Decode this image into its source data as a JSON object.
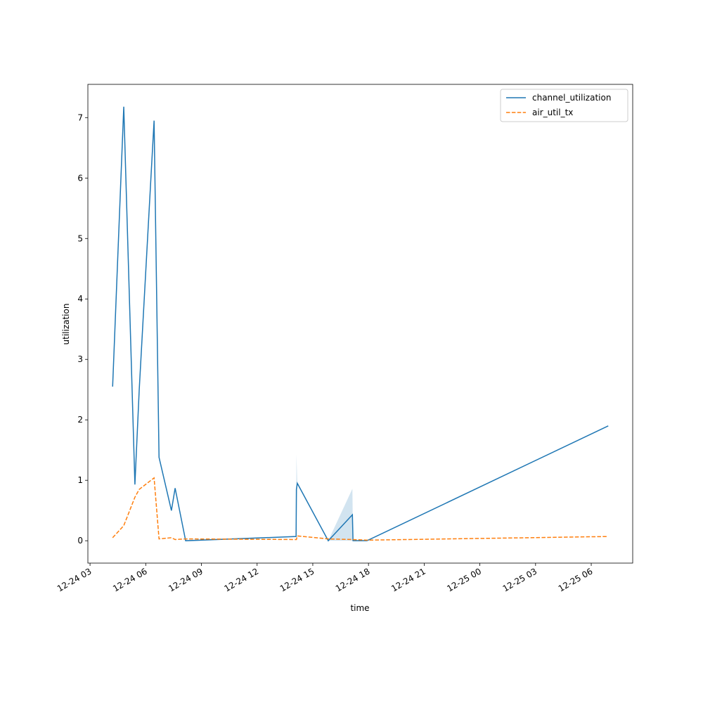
{
  "chart_data": {
    "type": "line",
    "x_label": "time",
    "y_label": "utilization",
    "x": [
      "12-24 04:13",
      "12-24 04:49",
      "12-24 05:25",
      "12-24 05:39",
      "12-24 06:27",
      "12-24 06:43",
      "12-24 07:23",
      "12-24 07:35",
      "12-24 08:09",
      "12-24 14:06",
      "12-24 14:07",
      "12-24 14:10",
      "12-24 15:50",
      "12-24 17:08",
      "12-24 17:10",
      "12-24 17:55",
      "12-25 06:55"
    ],
    "series": [
      {
        "name": "channel_utilization",
        "color": "#1f77b4",
        "dash": false,
        "values": [
          2.55,
          7.18,
          0.93,
          2.5,
          6.95,
          1.38,
          0.5,
          0.87,
          0.0,
          0.07,
          0.85,
          0.95,
          0.0,
          0.43,
          0.0,
          0.0,
          1.9
        ],
        "lower": [
          2.55,
          7.18,
          0.93,
          2.5,
          6.95,
          1.38,
          0.5,
          0.87,
          0.0,
          0.07,
          0.07,
          0.95,
          0.0,
          0.0,
          0.0,
          0.0,
          1.9
        ],
        "upper": [
          2.55,
          7.18,
          0.93,
          2.5,
          6.95,
          1.38,
          0.5,
          0.87,
          0.0,
          0.07,
          1.43,
          0.95,
          0.0,
          0.86,
          0.0,
          0.0,
          1.9
        ]
      },
      {
        "name": "air_util_tx",
        "color": "#ff7f0e",
        "dash": true,
        "values": [
          0.05,
          0.25,
          0.72,
          0.85,
          1.04,
          0.03,
          0.05,
          0.02,
          0.03,
          0.02,
          0.02,
          0.08,
          0.03,
          0.02,
          0.02,
          0.01,
          0.07
        ]
      }
    ],
    "xlim": [
      "12-24 02:53",
      "12-25 08:14"
    ],
    "xticks": [
      "12-24 03",
      "12-24 06",
      "12-24 09",
      "12-24 12",
      "12-24 15",
      "12-24 18",
      "12-24 21",
      "12-25 00",
      "12-25 03",
      "12-25 06"
    ],
    "ylim": [
      -0.37,
      7.55
    ],
    "yticks": [
      0,
      1,
      2,
      3,
      4,
      5,
      6,
      7
    ],
    "grid": false,
    "legend": "upper right"
  }
}
